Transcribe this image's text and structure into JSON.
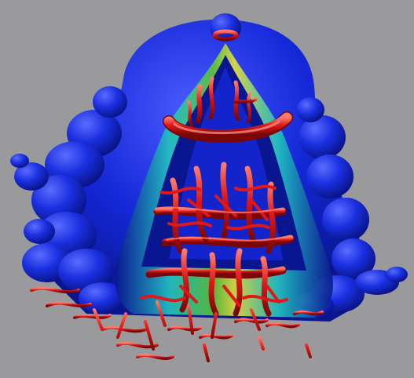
{
  "scene": {
    "subject": "vortex-structure-visualization",
    "palette": {
      "background": "#9a9a9c",
      "surface_blue": "#1428d8",
      "surface_blue_dark": "#0a1690",
      "surface_blue_light": "#4a5cff",
      "vortex_red": "#e01818",
      "vortex_red_dark": "#8a0808",
      "vortex_red_light": "#ff6a5a",
      "cyan": "#22c6c0",
      "green": "#5cc832",
      "yellow": "#e6e23a"
    }
  }
}
